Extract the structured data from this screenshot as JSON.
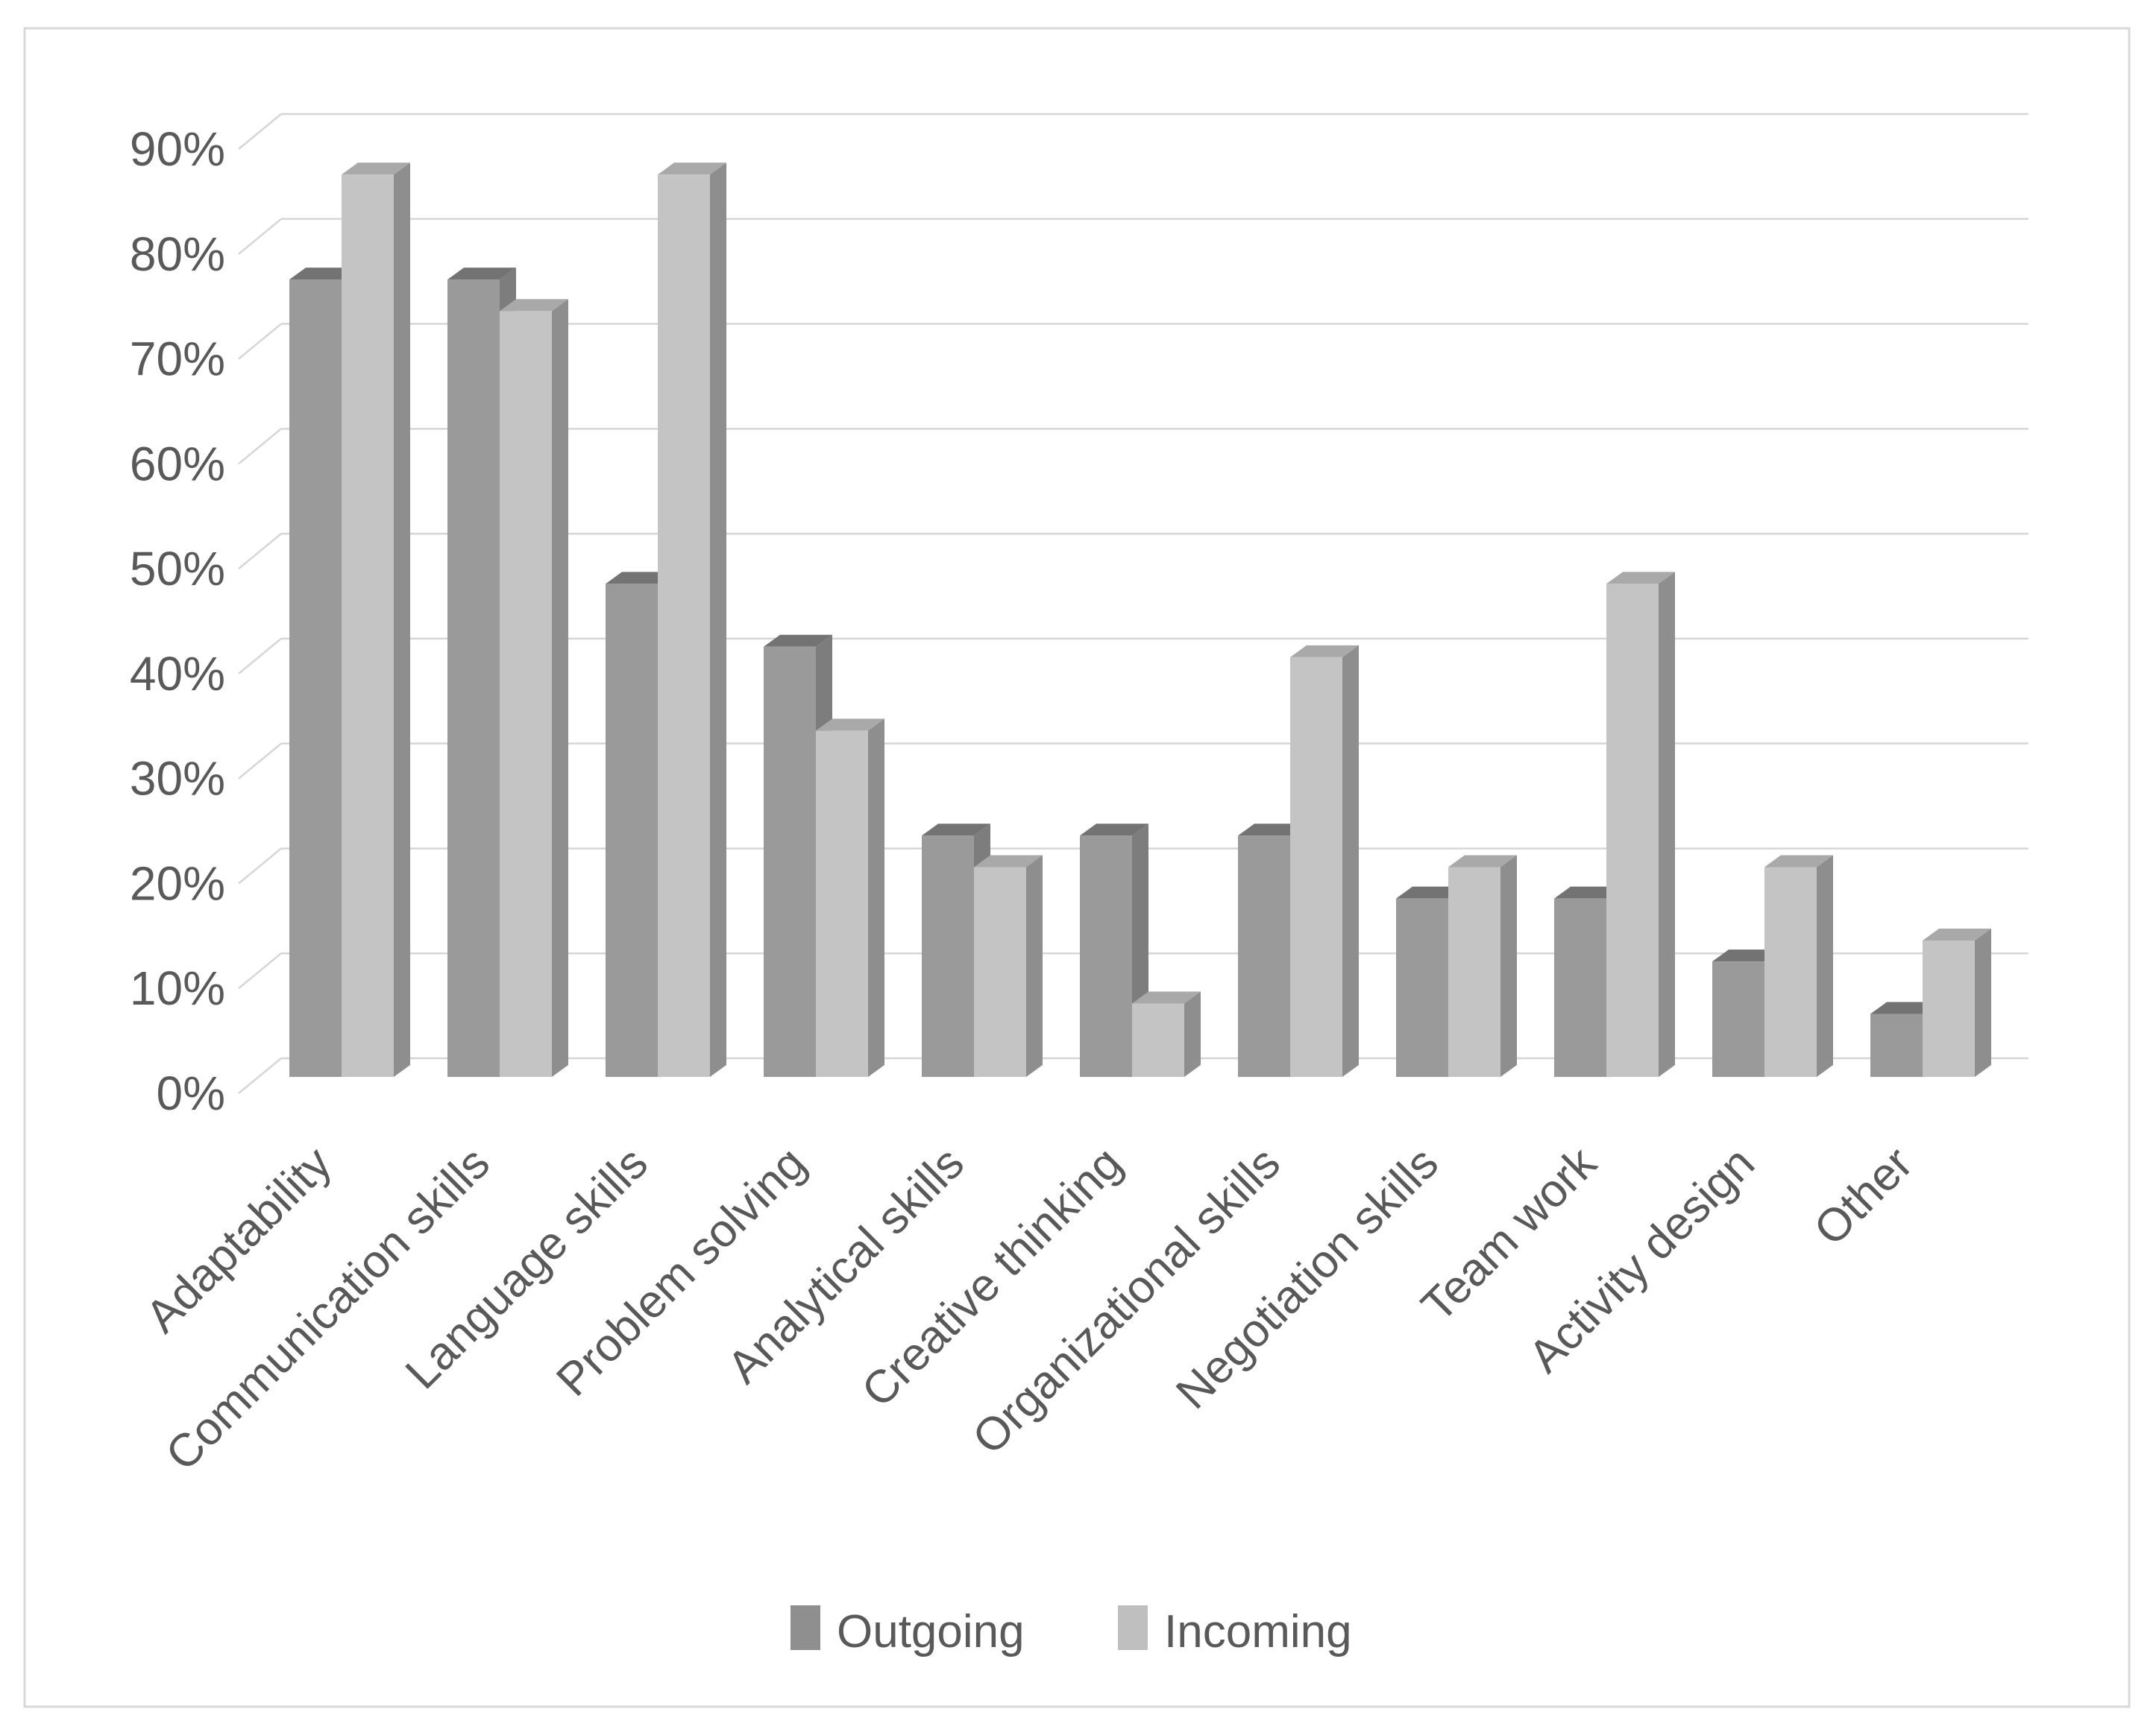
{
  "page": {
    "background": "#ffffff",
    "frame_border_color": "#d9d9d9"
  },
  "colors": {
    "axis_text": "#595959",
    "gridline": "#d6d6d6",
    "outgoing_front": "#9a9a9a",
    "outgoing_side": "#7d7d7d",
    "outgoing_top": "#737373",
    "outgoing_swatch": "#8f8f8f",
    "incoming_front": "#c4c4c4",
    "incoming_side": "#8e8e8e",
    "incoming_top": "#a9a9a9",
    "incoming_swatch": "#bfbfbf"
  },
  "legend": {
    "items": [
      {
        "label": "Outgoing"
      },
      {
        "label": "Incoming"
      }
    ]
  },
  "chart_data": {
    "type": "bar",
    "subtype": "3d-clustered-column",
    "title": "",
    "xlabel": "",
    "ylabel": "",
    "categories": [
      "Adaptability",
      "Communication skills",
      "Language skills",
      "Problem solving",
      "Analytical skills",
      "Creative thinking",
      "Organizational skills",
      "Negotiation skills",
      "Team work",
      "Activity design",
      "Other"
    ],
    "series": [
      {
        "name": "Outgoing",
        "values": [
          76,
          76,
          47,
          41,
          23,
          23,
          23,
          17,
          17,
          11,
          6
        ],
        "color_front": "#9a9a9a",
        "color_side": "#7d7d7d",
        "color_top": "#737373",
        "legend_swatch": "#8f8f8f"
      },
      {
        "name": "Incoming",
        "values": [
          86,
          73,
          86,
          33,
          20,
          7,
          40,
          20,
          47,
          20,
          13
        ],
        "color_front": "#c4c4c4",
        "color_side": "#8e8e8e",
        "color_top": "#a9a9a9",
        "legend_swatch": "#bfbfbf"
      }
    ],
    "unit": "%",
    "ylim": [
      0,
      90
    ],
    "y_tick_step": 10,
    "y_tick_labels": [
      "0%",
      "10%",
      "20%",
      "30%",
      "40%",
      "50%",
      "60%",
      "70%",
      "80%",
      "90%"
    ],
    "grid": true,
    "legend_position": "bottom"
  }
}
